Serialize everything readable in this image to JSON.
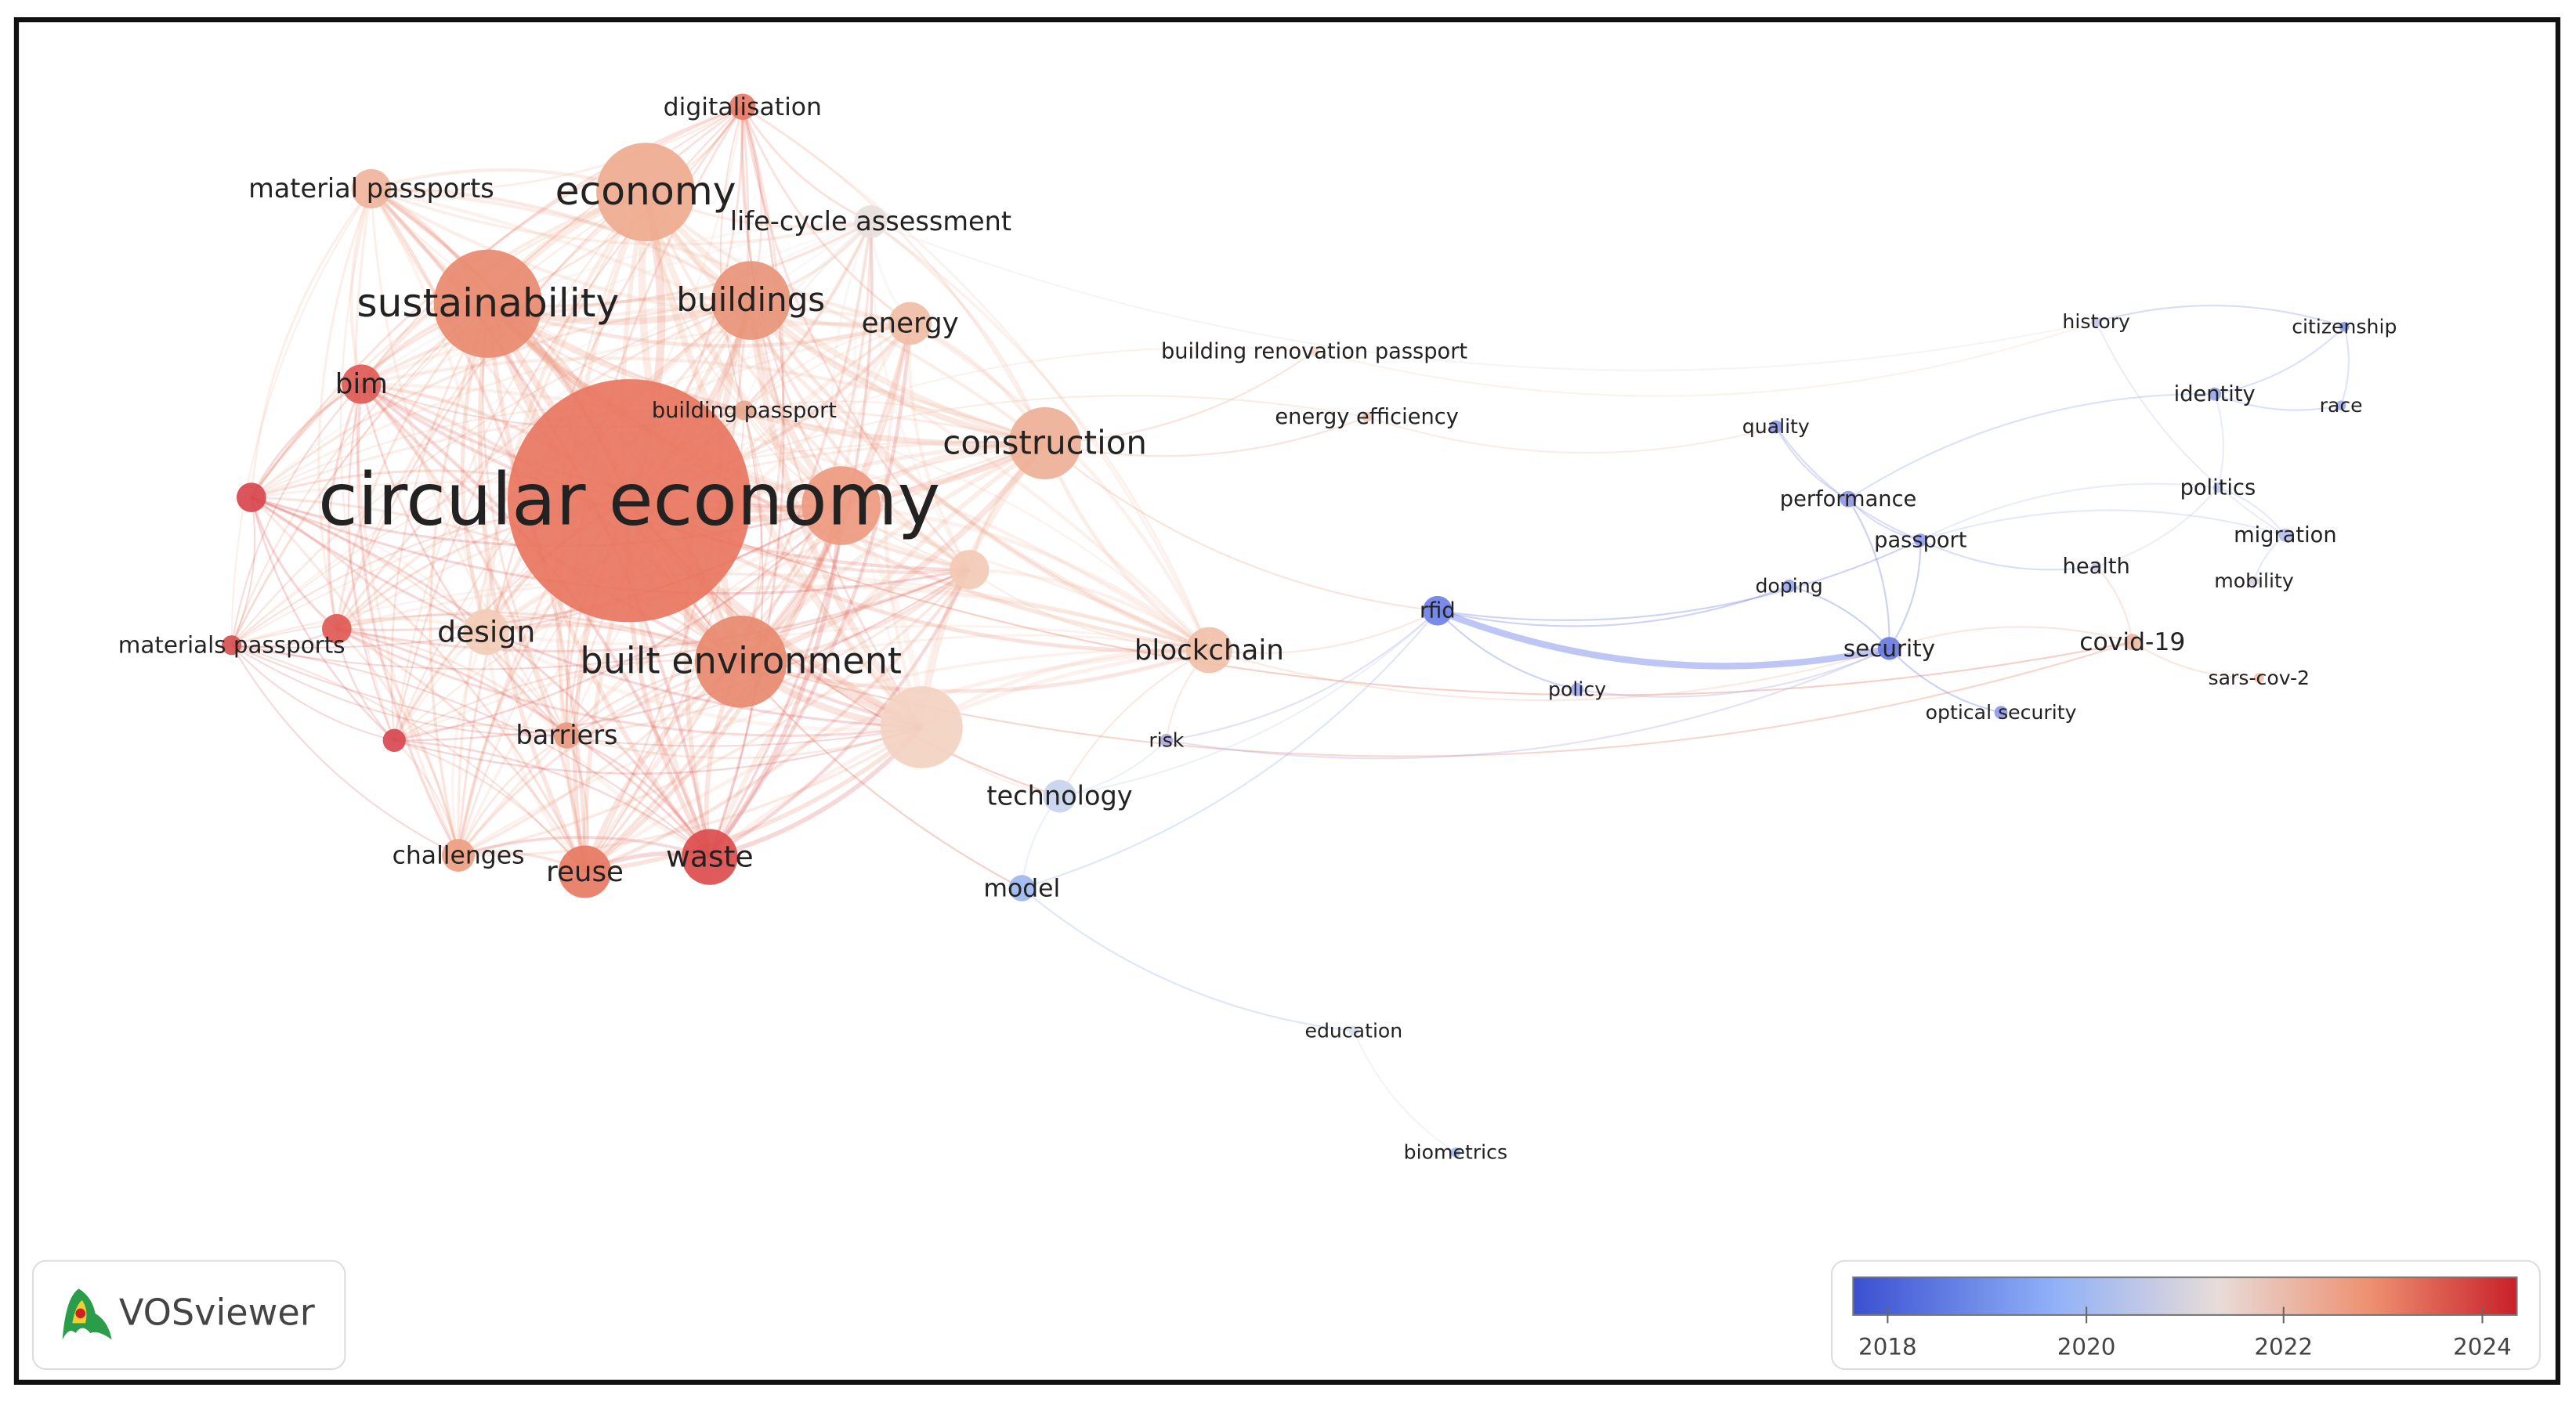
{
  "nodes": [
    {
      "label": "circular economy",
      "color": "#e8765f"
    },
    {
      "label": "economy",
      "color": "#eeab8f"
    },
    {
      "label": "sustainability",
      "color": "#e88a6f"
    },
    {
      "label": "buildings",
      "color": "#e8957a"
    },
    {
      "label": "built environment",
      "color": "#e88a70"
    },
    {
      "label": "construction",
      "color": "#eeb097"
    },
    {
      "label": "blockchain",
      "color": "#f0c0a8"
    },
    {
      "label": "design",
      "color": "#f3cdb8"
    },
    {
      "label": "waste",
      "color": "#dc4d4d"
    },
    {
      "label": "reuse",
      "color": "#e77a62"
    },
    {
      "label": "material passports",
      "color": "#f0b49c"
    },
    {
      "label": "digitalisation",
      "color": "#e87866"
    },
    {
      "label": "life-cycle assessment",
      "color": "#e8e0dc"
    },
    {
      "label": "energy",
      "color": "#f0bea6"
    },
    {
      "label": "bim",
      "color": "#e05a55"
    },
    {
      "label": "building passport",
      "color": "#e9a88f"
    },
    {
      "label": "materials passports",
      "color": "#d85050"
    },
    {
      "label": "barriers",
      "color": "#e69a80"
    },
    {
      "label": "challenges",
      "color": "#ee9f82"
    },
    {
      "label": "technology",
      "color": "#c8d4ee"
    },
    {
      "label": "model",
      "color": "#9db8ee"
    },
    {
      "label": "risk",
      "color": "#b0a8e0"
    },
    {
      "label": "rfid",
      "color": "#6c80e8"
    },
    {
      "label": "policy",
      "color": "#a0aaf0"
    },
    {
      "label": "energy efficiency",
      "color": "#f0c8b8"
    },
    {
      "label": "building renovation passport",
      "color": "#f5d8cc"
    },
    {
      "label": "quality",
      "color": "#8f9ae8"
    },
    {
      "label": "performance",
      "color": "#8f9ae8"
    },
    {
      "label": "passport",
      "color": "#8fa0f0"
    },
    {
      "label": "doping",
      "color": "#9aa8f0"
    },
    {
      "label": "security",
      "color": "#6a7ce0"
    },
    {
      "label": "optical security",
      "color": "#8f98e8"
    },
    {
      "label": "covid-19",
      "color": "#f0b8a0"
    },
    {
      "label": "sars-cov-2",
      "color": "#f2c2ae"
    },
    {
      "label": "health",
      "color": "#c8cce8"
    },
    {
      "label": "mobility",
      "color": "#d8d0e0"
    },
    {
      "label": "migration",
      "color": "#b8c0ee"
    },
    {
      "label": "politics",
      "color": "#c0c8f0"
    },
    {
      "label": "identity",
      "color": "#95a8f0"
    },
    {
      "label": "race",
      "color": "#a0b0f0"
    },
    {
      "label": "citizenship",
      "color": "#8898ec"
    },
    {
      "label": "history",
      "color": "#c8c8ee"
    },
    {
      "label": "education",
      "color": "#d8e0ee"
    },
    {
      "label": "biometrics",
      "color": "#a8b8f0"
    },
    {
      "color": "#d8464e"
    },
    {
      "color": "#e05a55"
    },
    {
      "color": "#d84850"
    },
    {
      "color": "#f2cab4"
    },
    {
      "color": "#f3d3c2"
    },
    {
      "color": "#ee9a80"
    }
  ],
  "legend": {
    "ticks": [
      "2018",
      "2020",
      "2022",
      "2024"
    ]
  },
  "logo": "VOSviewer"
}
